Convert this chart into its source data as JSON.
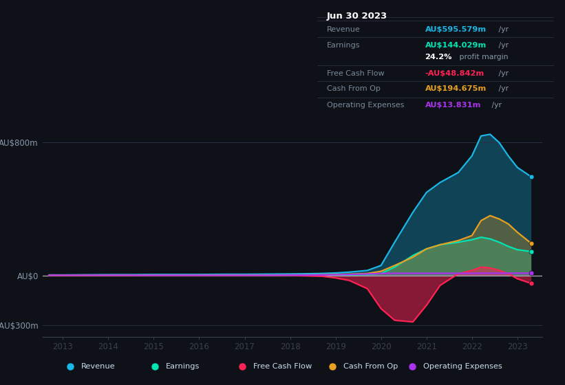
{
  "background_color": "#0e1117",
  "plot_bg_color": "#0e1117",
  "years": [
    2012.7,
    2013.0,
    2013.5,
    2014.0,
    2014.5,
    2015.0,
    2015.5,
    2016.0,
    2016.5,
    2017.0,
    2017.5,
    2018.0,
    2018.3,
    2018.7,
    2019.0,
    2019.3,
    2019.7,
    2020.0,
    2020.3,
    2020.7,
    2021.0,
    2021.3,
    2021.7,
    2022.0,
    2022.2,
    2022.4,
    2022.6,
    2022.8,
    2023.0,
    2023.3
  ],
  "revenue": [
    3,
    3,
    4,
    5,
    5,
    6,
    6,
    6,
    7,
    7,
    8,
    9,
    10,
    12,
    15,
    20,
    30,
    60,
    200,
    380,
    500,
    560,
    620,
    720,
    840,
    850,
    800,
    720,
    650,
    595
  ],
  "earnings": [
    1,
    1,
    1,
    1,
    1,
    1,
    1,
    1,
    1,
    1,
    1,
    1,
    1,
    2,
    3,
    4,
    6,
    12,
    50,
    120,
    160,
    185,
    200,
    215,
    230,
    220,
    200,
    175,
    155,
    144
  ],
  "free_cash_flow": [
    0,
    0,
    0,
    0,
    0,
    0,
    0,
    0,
    0,
    0,
    0,
    0,
    -2,
    -5,
    -15,
    -30,
    -80,
    -200,
    -270,
    -280,
    -180,
    -60,
    10,
    30,
    50,
    45,
    30,
    10,
    -20,
    -48
  ],
  "cash_from_op": [
    1,
    1,
    1,
    1,
    1,
    2,
    2,
    2,
    2,
    2,
    2,
    3,
    3,
    4,
    5,
    8,
    12,
    25,
    60,
    110,
    160,
    185,
    210,
    240,
    330,
    360,
    340,
    310,
    260,
    194
  ],
  "op_expenses": [
    1,
    1,
    1,
    1,
    1,
    1,
    1,
    1,
    1,
    1,
    1,
    2,
    2,
    3,
    4,
    6,
    9,
    12,
    13,
    13,
    13,
    13,
    13,
    13,
    14,
    14,
    14,
    14,
    14,
    13.8
  ],
  "revenue_color": "#1ab8e8",
  "earnings_color": "#00e5b4",
  "fcf_color": "#ff2255",
  "cash_from_op_color": "#e8a020",
  "op_expenses_color": "#aa33ee",
  "ylim": [
    -370,
    940
  ],
  "yticks_vals": [
    -300,
    0,
    800
  ],
  "ytick_labels": [
    "-AU$300m",
    "AU$0",
    "AU$800m"
  ],
  "xticks": [
    2013,
    2014,
    2015,
    2016,
    2017,
    2018,
    2019,
    2020,
    2021,
    2022,
    2023
  ],
  "xlim_left": 2012.55,
  "xlim_right": 2023.55,
  "table_title": "Jun 30 2023",
  "table_rows": [
    {
      "label": "Revenue",
      "value": "AU$595.579m",
      "suffix": " /yr",
      "color": "#1ab8e8"
    },
    {
      "label": "Earnings",
      "value": "AU$144.029m",
      "suffix": " /yr",
      "color": "#00e5b4"
    },
    {
      "label": "",
      "value": "24.2%",
      "suffix": " profit margin",
      "color": "#ffffff",
      "bold_value": true
    },
    {
      "label": "Free Cash Flow",
      "value": "-AU$48.842m",
      "suffix": " /yr",
      "color": "#ff2255"
    },
    {
      "label": "Cash From Op",
      "value": "AU$194.675m",
      "suffix": " /yr",
      "color": "#e8a020"
    },
    {
      "label": "Operating Expenses",
      "value": "AU$13.831m",
      "suffix": " /yr",
      "color": "#aa33ee"
    }
  ],
  "legend_items": [
    {
      "label": "Revenue",
      "color": "#1ab8e8"
    },
    {
      "label": "Earnings",
      "color": "#00e5b4"
    },
    {
      "label": "Free Cash Flow",
      "color": "#ff2255"
    },
    {
      "label": "Cash From Op",
      "color": "#e8a020"
    },
    {
      "label": "Operating Expenses",
      "color": "#aa33ee"
    }
  ]
}
